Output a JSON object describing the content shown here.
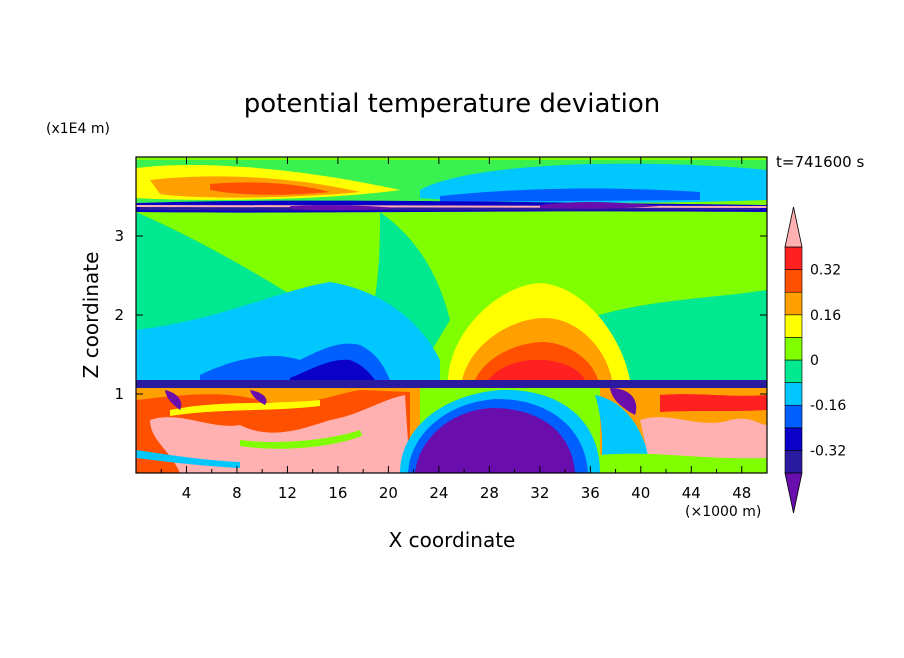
{
  "chart_data": {
    "type": "heatmap",
    "title": "potential temperature deviation",
    "xlabel": "X coordinate",
    "ylabel": "Z coordinate",
    "x_unit": "(×1000 m)",
    "y_unit": "(x1E4 m)",
    "time_label": "t=741600 s",
    "xlim": [
      0,
      50
    ],
    "ylim": [
      0,
      4
    ],
    "x_ticks": [
      4,
      8,
      12,
      16,
      20,
      24,
      28,
      32,
      36,
      40,
      44,
      48
    ],
    "y_ticks": [
      1,
      2,
      3
    ],
    "colorbar": {
      "levels": [
        -0.4,
        -0.32,
        -0.24,
        -0.16,
        -0.08,
        0,
        0.08,
        0.16,
        0.24,
        0.32,
        0.4
      ],
      "labels": [
        "0.32",
        "0.16",
        "0",
        "-0.16",
        "-0.32"
      ],
      "label_values": [
        0.32,
        0.16,
        0,
        -0.16,
        -0.32
      ],
      "colors_low_to_high": [
        "#6a0dad",
        "#2a1aa0",
        "#0a00c8",
        "#0060ff",
        "#00c8ff",
        "#00e890",
        "#80ff00",
        "#ffff00",
        "#ffa000",
        "#ff5000",
        "#ff2020",
        "#ffb0b0"
      ]
    },
    "regions": [
      {
        "name": "warm-upper-left-band",
        "level": 0.24,
        "x": [
          1,
          22
        ],
        "z": [
          3.5,
          3.95
        ]
      },
      {
        "name": "cold-upper-right-band",
        "level": -0.16,
        "x": [
          23,
          45
        ],
        "z": [
          3.45,
          3.95
        ]
      },
      {
        "name": "tropopause-cold-layer",
        "level": -0.4,
        "x": [
          0,
          50
        ],
        "z": [
          3.3,
          3.42
        ]
      },
      {
        "name": "mid-warm-plume",
        "level": 0.32,
        "x": [
          24,
          38
        ],
        "z": [
          1.1,
          2.4
        ]
      },
      {
        "name": "mid-cold-lobe",
        "level": -0.16,
        "x": [
          8,
          24
        ],
        "z": [
          1.2,
          2.3
        ]
      },
      {
        "name": "surface-cold-pool",
        "level": -0.4,
        "x": [
          22,
          34
        ],
        "z": [
          0,
          0.85
        ]
      },
      {
        "name": "boundary-layer-warm-left",
        "level": 0.4,
        "x": [
          0,
          20
        ],
        "z": [
          0,
          1.0
        ]
      },
      {
        "name": "boundary-layer-warm-right",
        "level": 0.4,
        "x": [
          39,
          50
        ],
        "z": [
          0,
          0.8
        ]
      }
    ]
  }
}
